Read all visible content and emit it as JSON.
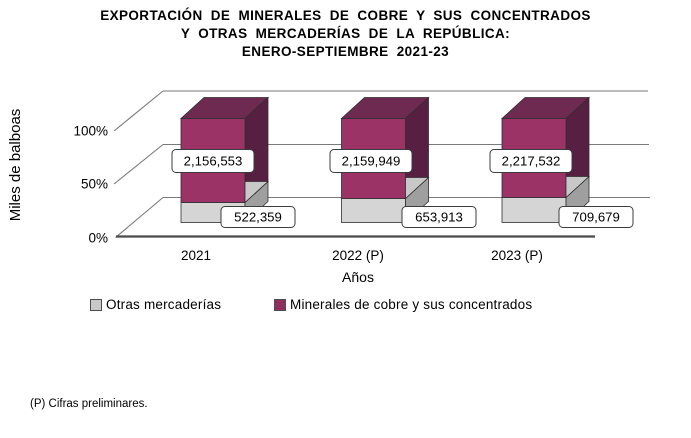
{
  "title": {
    "line1": "EXPORTACIÓN DE MINERALES DE COBRE Y SUS CONCENTRADOS",
    "line2": "Y OTRAS MERCADERÍAS DE LA REPÚBLICA:",
    "line3": "ENERO-SEPTIEMBRE 2021-23"
  },
  "footnote": "(P) Cifras preliminares.",
  "chart_data": {
    "type": "bar",
    "subtype": "3d-stacked-100-percent",
    "title": "EXPORTACIÓN DE MINERALES DE COBRE Y SUS CONCENTRADOS Y OTRAS MERCADERÍAS DE LA REPÚBLICA: ENERO-SEPTIEMBRE 2021-23",
    "categories": [
      "2021",
      "2022 (P)",
      "2023 (P)"
    ],
    "series": [
      {
        "name": "Otras mercaderías",
        "values": [
          522359,
          653913,
          709679
        ],
        "labels": [
          "522,359",
          "653,913",
          "709,679"
        ],
        "color": "#d5d5d5"
      },
      {
        "name": "Minerales de cobre y sus concentrados",
        "values": [
          2156553,
          2159949,
          2217532
        ],
        "labels": [
          "2,156,553",
          "2,159,949",
          "2,217,532"
        ],
        "color": "#9b3367"
      }
    ],
    "xlabel": "Años",
    "ylabel": "Miles de balboas",
    "yticks": [
      "0%",
      "50%",
      "100%"
    ],
    "ylim": [
      0,
      100
    ],
    "grid": true,
    "legend_position": "bottom",
    "colors": {
      "bar_front": "#9b3367",
      "bar_top": "#6f2a51",
      "bar_side": "#571f41",
      "gray_front": "#d5d5d5",
      "gray_side": "#9f9f9f",
      "gray_top_sliver": "#c8c8c8",
      "gridline": "#7a7a7a",
      "axis_line": "#4a4a4a",
      "label_box_border": "#3c3c3c"
    }
  }
}
